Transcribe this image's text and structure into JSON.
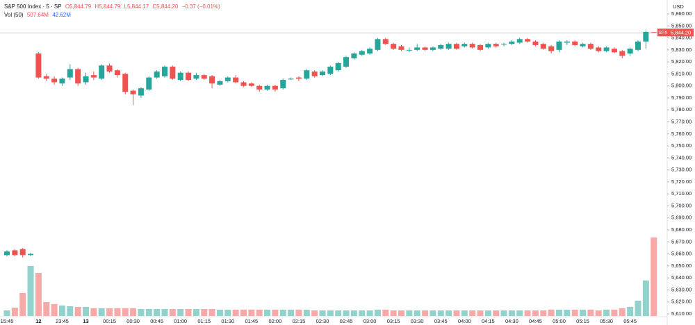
{
  "chart_data": {
    "type": "candlestick",
    "legend": {
      "symbol": "S&P 500 Index · 5 · SP",
      "ohlc": [
        "O5,844.79",
        "H5,844.79",
        "L5,844.17",
        "C5,844.20"
      ],
      "change": "−0.37 (−0.01%)",
      "volume_name": "Vol (50)",
      "volume_values": [
        "507.64M",
        "42.62M"
      ]
    },
    "currency": "USD",
    "categories": [
      "15:45",
      null,
      null,
      null,
      "12",
      null,
      null,
      "23:45",
      null,
      null,
      "13",
      null,
      null,
      "00:15",
      null,
      null,
      "00:30",
      null,
      null,
      "00:45",
      null,
      null,
      "01:00",
      null,
      null,
      "01:15",
      null,
      null,
      "01:30",
      null,
      null,
      "01:45",
      null,
      null,
      "02:00",
      null,
      null,
      "02:15",
      null,
      null,
      "02:30",
      null,
      null,
      "02:45",
      null,
      null,
      "03:00",
      null,
      null,
      "03:15",
      null,
      null,
      "03:30",
      null,
      null,
      "03:45",
      null,
      null,
      "04:00",
      null,
      null,
      "04:15",
      null,
      null,
      "04:30",
      null,
      null,
      "04:45",
      null,
      null,
      "05:00",
      null,
      null,
      "05:15",
      null,
      null,
      "05:30",
      null,
      null,
      "05:45",
      null,
      null,
      null
    ],
    "open": [
      5659,
      5663,
      5664,
      5659,
      5827,
      5808,
      5806,
      5802,
      5807,
      5814,
      5803,
      5809,
      5806,
      5817,
      5813,
      5810,
      5796,
      5792,
      5797,
      5807,
      5808,
      5816,
      5805,
      5811,
      5806,
      5809,
      5808,
      5801,
      5804,
      5807,
      5803,
      5802,
      5800,
      5797,
      5800,
      5798,
      5806,
      5807,
      5806,
      5812,
      5809,
      5810,
      5813,
      5816,
      5823,
      5826,
      5827,
      5830,
      5839,
      5835,
      5833,
      5830,
      5830,
      5832,
      5830,
      5831,
      5831,
      5835,
      5833,
      5835,
      5834,
      5832,
      5835,
      5835,
      5835,
      5836,
      5839,
      5837,
      5835,
      5833,
      5830,
      5836,
      5837,
      5833,
      5835,
      5832,
      5829,
      5831,
      5829,
      5827,
      5830,
      5837,
      5844.79
    ],
    "high": [
      5663,
      5664,
      5665,
      5661,
      5828,
      5810,
      5808,
      5807,
      5818,
      5815,
      5811,
      5812,
      5818,
      5819,
      5814,
      5811,
      5797,
      5799,
      5808,
      5813,
      5817,
      5817,
      5812,
      5812,
      5811,
      5810,
      5809,
      5805,
      5808,
      5809,
      5804,
      5803,
      5801,
      5801,
      5801,
      5806,
      5807,
      5808,
      5814,
      5813,
      5813,
      5817,
      5820,
      5825,
      5828,
      5830,
      5832,
      5840,
      5840,
      5836,
      5834,
      5832,
      5835,
      5833,
      5833,
      5835,
      5836,
      5836,
      5836,
      5836,
      5835,
      5836,
      5836,
      5836,
      5838,
      5840,
      5840,
      5838,
      5836,
      5834,
      5838,
      5838,
      5838,
      5836,
      5836,
      5833,
      5833,
      5832,
      5830,
      5832,
      5838,
      5846,
      5844.79
    ],
    "low": [
      5658,
      5658,
      5657,
      5658,
      5806,
      5804,
      5801,
      5800,
      5805,
      5800,
      5801,
      5805,
      5805,
      5811,
      5807,
      5793,
      5784,
      5790,
      5796,
      5806,
      5807,
      5805,
      5804,
      5804,
      5805,
      5805,
      5798,
      5800,
      5803,
      5802,
      5799,
      5799,
      5795,
      5796,
      5795,
      5797,
      5805,
      5804,
      5805,
      5807,
      5808,
      5809,
      5812,
      5815,
      5822,
      5825,
      5826,
      5829,
      5834,
      5830,
      5829,
      5828,
      5829,
      5829,
      5829,
      5830,
      5830,
      5830,
      5832,
      5831,
      5829,
      5831,
      5832,
      5833,
      5834,
      5835,
      5836,
      5833,
      5830,
      5827,
      5828,
      5834,
      5833,
      5832,
      5830,
      5828,
      5828,
      5827,
      5823,
      5825,
      5829,
      5831,
      5844.17
    ],
    "close": [
      5662,
      5659,
      5659,
      5660,
      5807,
      5806,
      5803,
      5806,
      5814,
      5802,
      5808,
      5807,
      5817,
      5812,
      5809,
      5795,
      5793,
      5798,
      5807,
      5812,
      5816,
      5806,
      5811,
      5805,
      5809,
      5806,
      5802,
      5804,
      5807,
      5803,
      5800,
      5800,
      5797,
      5800,
      5797,
      5805,
      5806,
      5806,
      5813,
      5808,
      5812,
      5816,
      5819,
      5824,
      5827,
      5829,
      5831,
      5839,
      5835,
      5831,
      5830,
      5830,
      5832,
      5830,
      5832,
      5834,
      5835,
      5831,
      5835,
      5832,
      5830,
      5835,
      5833,
      5835,
      5837,
      5839,
      5837,
      5834,
      5831,
      5829,
      5837,
      5837,
      5834,
      5835,
      5831,
      5829,
      5832,
      5828,
      5825,
      5831,
      5837,
      5845,
      5844.2
    ],
    "volume": [
      36,
      54,
      149,
      324,
      279,
      90,
      77,
      68,
      63,
      59,
      59,
      50,
      50,
      50,
      50,
      50,
      50,
      45,
      45,
      45,
      45,
      45,
      45,
      45,
      45,
      45,
      45,
      41,
      41,
      41,
      41,
      41,
      41,
      41,
      41,
      41,
      41,
      41,
      41,
      36,
      36,
      36,
      36,
      36,
      36,
      36,
      36,
      41,
      41,
      36,
      36,
      36,
      36,
      36,
      36,
      36,
      36,
      36,
      36,
      36,
      36,
      36,
      36,
      36,
      36,
      36,
      36,
      36,
      36,
      41,
      41,
      41,
      41,
      41,
      41,
      36,
      41,
      41,
      50,
      59,
      99,
      230,
      508
    ],
    "up_color": "#26a69a",
    "down_color": "#ef5350",
    "last_price": {
      "tag": "SPX",
      "value": 5844.2,
      "label": "5,844.20"
    },
    "ylim": [
      5610,
      5860
    ],
    "yticks": [
      {
        "value": 5610,
        "label": "5,610.00"
      },
      {
        "value": 5620,
        "label": "5,620.00"
      },
      {
        "value": 5630,
        "label": "5,630.00"
      },
      {
        "value": 5640,
        "label": "5,640.00"
      },
      {
        "value": 5650,
        "label": "5,650.00"
      },
      {
        "value": 5660,
        "label": "5,660.00"
      },
      {
        "value": 5670,
        "label": "5,670.00"
      },
      {
        "value": 5680,
        "label": "5,680.00"
      },
      {
        "value": 5690,
        "label": "5,690.00"
      },
      {
        "value": 5700,
        "label": "5,700.00"
      },
      {
        "value": 5710,
        "label": "5,710.00"
      },
      {
        "value": 5720,
        "label": "5,720.00"
      },
      {
        "value": 5730,
        "label": "5,730.00"
      },
      {
        "value": 5740,
        "label": "5,740.00"
      },
      {
        "value": 5750,
        "label": "5,750.00"
      },
      {
        "value": 5760,
        "label": "5,760.00"
      },
      {
        "value": 5770,
        "label": "5,770.00"
      },
      {
        "value": 5780,
        "label": "5,780.00"
      },
      {
        "value": 5790,
        "label": "5,790.00"
      },
      {
        "value": 5800,
        "label": "5,800.00"
      },
      {
        "value": 5810,
        "label": "5,810.00"
      },
      {
        "value": 5820,
        "label": "5,820.00"
      },
      {
        "value": 5830,
        "label": "5,830.00"
      },
      {
        "value": 5840,
        "label": "5,840.00"
      },
      {
        "value": 5850,
        "label": "5,850.00"
      },
      {
        "value": 5860,
        "label": "5,860.00"
      }
    ]
  }
}
